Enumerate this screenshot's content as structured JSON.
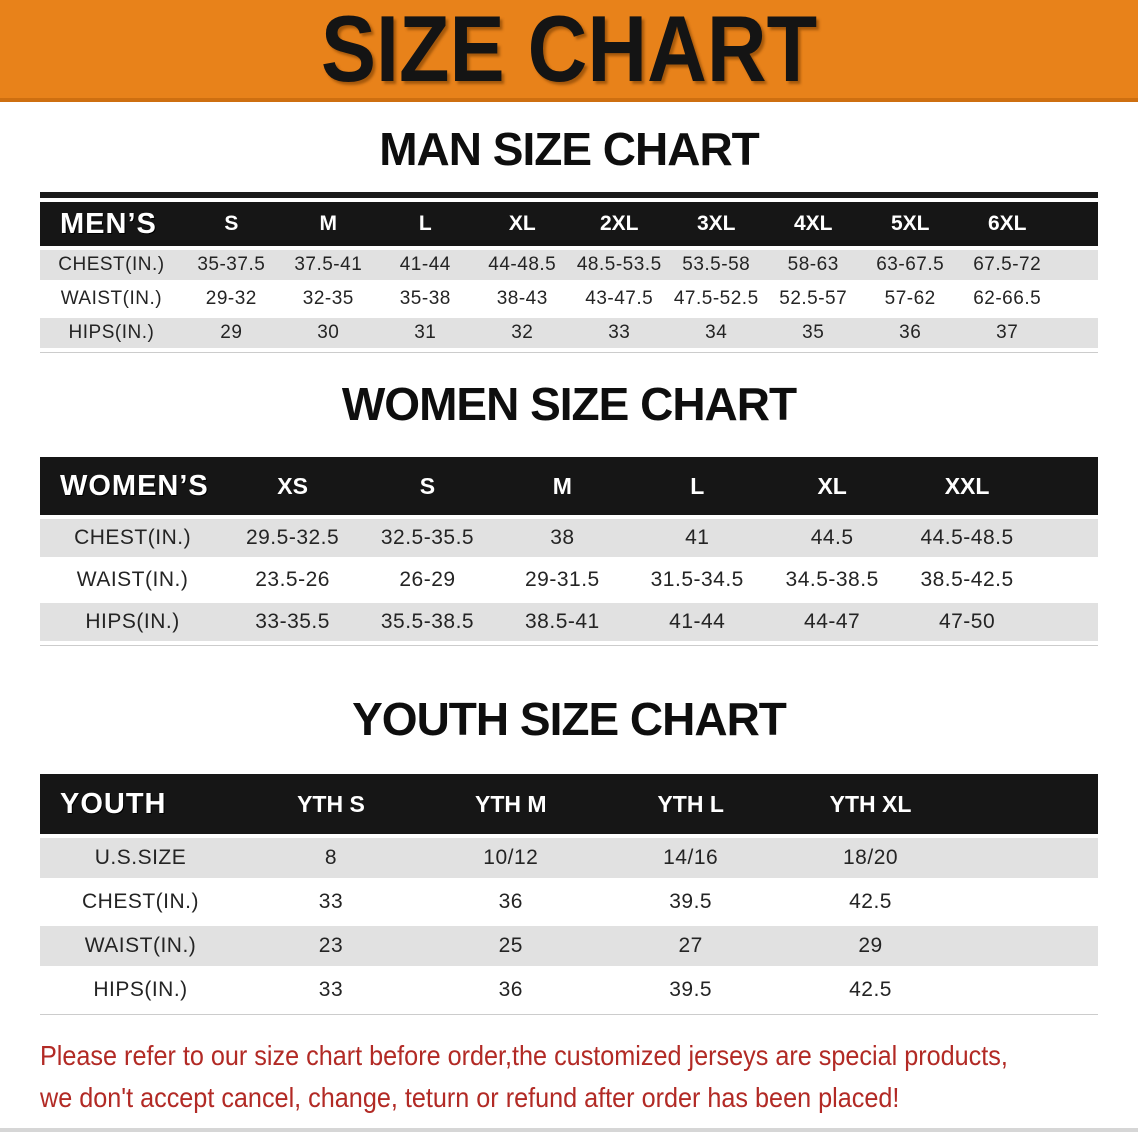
{
  "banner": {
    "title": "SIZE CHART",
    "background": "#E8821A",
    "text_color": "#141414"
  },
  "sections": [
    {
      "id": "men",
      "title": "MAN SIZE CHART",
      "corner_label": "MEN’S",
      "columns": [
        "S",
        "M",
        "L",
        "XL",
        "2XL",
        "3XL",
        "4XL",
        "5XL",
        "6XL"
      ],
      "rows": [
        {
          "label": "CHEST(IN.)",
          "values": [
            "35-37.5",
            "37.5-41",
            "41-44",
            "44-48.5",
            "48.5-53.5",
            "53.5-58",
            "58-63",
            "63-67.5",
            "67.5-72"
          ]
        },
        {
          "label": "WAIST(IN.)",
          "values": [
            "29-32",
            "32-35",
            "35-38",
            "38-43",
            "43-47.5",
            "47.5-52.5",
            "52.5-57",
            "57-62",
            "62-66.5"
          ]
        },
        {
          "label": "HIPS(IN.)",
          "values": [
            "29",
            "30",
            "31",
            "32",
            "33",
            "34",
            "35",
            "36",
            "37"
          ]
        }
      ]
    },
    {
      "id": "women",
      "title": "WOMEN SIZE CHART",
      "corner_label": "WOMEN’S",
      "columns": [
        "XS",
        "S",
        "M",
        "L",
        "XL",
        "XXL"
      ],
      "rows": [
        {
          "label": "CHEST(IN.)",
          "values": [
            "29.5-32.5",
            "32.5-35.5",
            "38",
            "41",
            "44.5",
            "44.5-48.5"
          ]
        },
        {
          "label": "WAIST(IN.)",
          "values": [
            "23.5-26",
            "26-29",
            "29-31.5",
            "31.5-34.5",
            "34.5-38.5",
            "38.5-42.5"
          ]
        },
        {
          "label": "HIPS(IN.)",
          "values": [
            "33-35.5",
            "35.5-38.5",
            "38.5-41",
            "41-44",
            "44-47",
            "47-50"
          ]
        }
      ]
    },
    {
      "id": "youth",
      "title": "YOUTH SIZE CHART",
      "corner_label": "YOUTH",
      "columns": [
        "YTH S",
        "YTH M",
        "YTH L",
        "YTH XL"
      ],
      "rows": [
        {
          "label": "U.S.SIZE",
          "values": [
            "8",
            "10/12",
            "14/16",
            "18/20"
          ]
        },
        {
          "label": "CHEST(IN.)",
          "values": [
            "33",
            "36",
            "39.5",
            "42.5"
          ]
        },
        {
          "label": "WAIST(IN.)",
          "values": [
            "23",
            "25",
            "27",
            "29"
          ]
        },
        {
          "label": "HIPS(IN.)",
          "values": [
            "33",
            "36",
            "39.5",
            "42.5"
          ]
        }
      ]
    }
  ],
  "notice": {
    "line1": "Please refer to our size chart before order,the customized jerseys are special products,",
    "line2": "we don't accept cancel, change, teturn or refund after order has been placed!",
    "color": "#B22A25"
  },
  "colors": {
    "header_bar": "#161616",
    "header_text": "#FFFFFF",
    "row_alt": "#E1E1E1",
    "table_text": "#242424"
  }
}
